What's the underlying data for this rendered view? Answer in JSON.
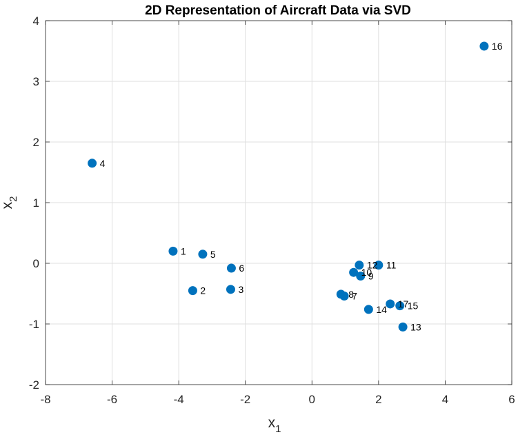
{
  "chart_data": {
    "type": "scatter",
    "title": "2D Representation of Aircraft Data via SVD",
    "xlabel": {
      "base": "x",
      "sub": "1"
    },
    "ylabel": {
      "base": "x",
      "sub": "2"
    },
    "xlim": [
      -8,
      6
    ],
    "ylim": [
      -2,
      4
    ],
    "xticks": [
      -8,
      -6,
      -4,
      -2,
      0,
      2,
      4,
      6
    ],
    "yticks": [
      -2,
      -1,
      0,
      1,
      2,
      3,
      4
    ],
    "grid": true,
    "marker_color": "#0072BD",
    "points": [
      {
        "label": "1",
        "x": -4.17,
        "y": 0.2
      },
      {
        "label": "2",
        "x": -3.58,
        "y": -0.45
      },
      {
        "label": "3",
        "x": -2.44,
        "y": -0.43
      },
      {
        "label": "4",
        "x": -6.6,
        "y": 1.65
      },
      {
        "label": "5",
        "x": -3.28,
        "y": 0.15
      },
      {
        "label": "6",
        "x": -2.42,
        "y": -0.08
      },
      {
        "label": "7",
        "x": 0.97,
        "y": -0.54
      },
      {
        "label": "8",
        "x": 0.87,
        "y": -0.51
      },
      {
        "label": "9",
        "x": 1.46,
        "y": -0.21
      },
      {
        "label": "10",
        "x": 1.25,
        "y": -0.15
      },
      {
        "label": "11",
        "x": 2.0,
        "y": -0.03
      },
      {
        "label": "12",
        "x": 1.42,
        "y": -0.03
      },
      {
        "label": "13",
        "x": 2.73,
        "y": -1.05
      },
      {
        "label": "14",
        "x": 1.7,
        "y": -0.76
      },
      {
        "label": "15",
        "x": 2.64,
        "y": -0.7
      },
      {
        "label": "16",
        "x": 5.17,
        "y": 3.58
      },
      {
        "label": "17",
        "x": 2.35,
        "y": -0.67
      }
    ]
  }
}
